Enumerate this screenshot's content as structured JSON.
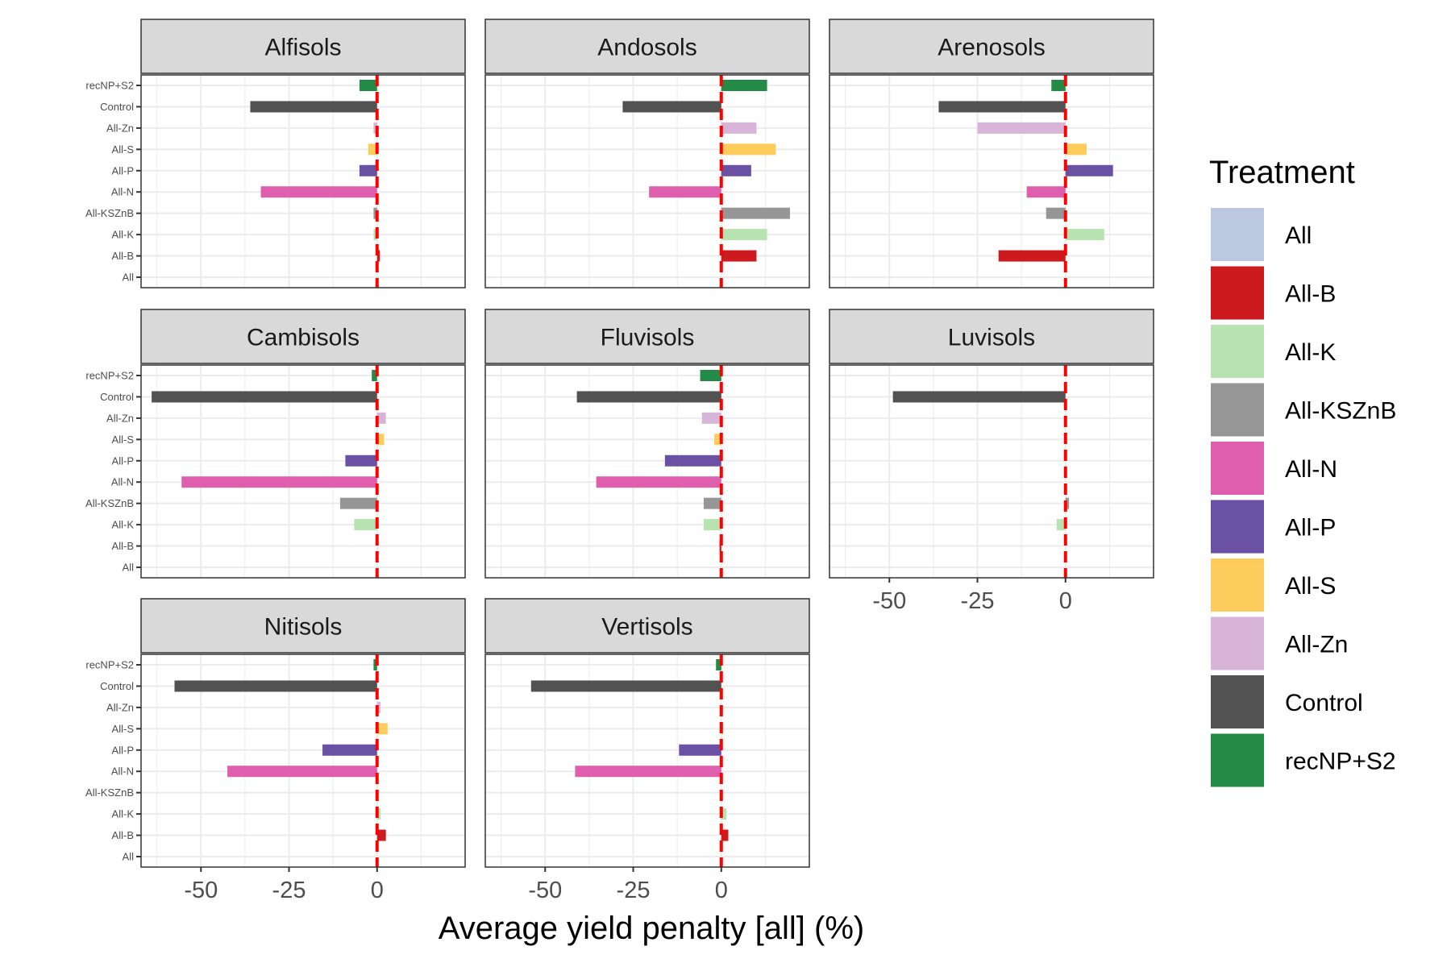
{
  "chart_data": {
    "type": "bar",
    "orientation": "horizontal",
    "xlabel": "Average yield penalty [all] (%)",
    "xlim": [
      -67,
      25
    ],
    "x_ticks": [
      -50,
      -25,
      0
    ],
    "x_tick_labels": [
      "-50",
      "-25",
      "0"
    ],
    "reference_line": {
      "x": 0,
      "style": "dashed",
      "color": "#ff0000"
    },
    "grid": true,
    "legend": {
      "title": "Treatment",
      "position": "right",
      "entries": [
        {
          "name": "All",
          "color": "#bcc8e0"
        },
        {
          "name": "All-B",
          "color": "#cc1a1f"
        },
        {
          "name": "All-K",
          "color": "#b7e3b1"
        },
        {
          "name": "All-KSZnB",
          "color": "#969696"
        },
        {
          "name": "All-N",
          "color": "#df5fae"
        },
        {
          "name": "All-P",
          "color": "#6a51a3"
        },
        {
          "name": "All-S",
          "color": "#fecc5c"
        },
        {
          "name": "All-Zn",
          "color": "#d8b5d8"
        },
        {
          "name": "Control",
          "color": "#525252"
        },
        {
          "name": "recNP+S2",
          "color": "#238b45"
        }
      ]
    },
    "categories": [
      "All",
      "All-B",
      "All-K",
      "All-KSZnB",
      "All-N",
      "All-P",
      "All-S",
      "All-Zn",
      "Control",
      "recNP+S2"
    ],
    "panels": [
      {
        "name": "Alfisols",
        "values": [
          0,
          0.8,
          -1,
          -1,
          -33,
          -5,
          -2.5,
          -1,
          -36,
          -5
        ]
      },
      {
        "name": "Andosols",
        "values": [
          null,
          10,
          13,
          19.5,
          -20.5,
          8.5,
          15.5,
          10,
          -28,
          13
        ]
      },
      {
        "name": "Arenosols",
        "values": [
          null,
          -19,
          11,
          -5.5,
          -11,
          13.5,
          6,
          -25,
          -36,
          -4
        ]
      },
      {
        "name": "Cambisols",
        "values": [
          0,
          0,
          -6.5,
          -10.5,
          -55.5,
          -9,
          2,
          2.5,
          -64,
          -1.5
        ]
      },
      {
        "name": "Fluvisols",
        "values": [
          0,
          -0.5,
          -5,
          -5,
          -35.5,
          -16,
          -2,
          -5.5,
          -41,
          -6
        ]
      },
      {
        "name": "Luvisols",
        "values": [
          null,
          null,
          -2.5,
          1,
          null,
          null,
          null,
          null,
          -49,
          null
        ]
      },
      {
        "name": "Nitisols",
        "values": [
          0,
          2.5,
          1,
          null,
          -42.5,
          -15.5,
          3,
          1,
          -57.5,
          -1
        ]
      },
      {
        "name": "Vertisols",
        "values": [
          0,
          2,
          1.5,
          null,
          -41.5,
          -12,
          0.5,
          null,
          -54,
          -1.5
        ]
      }
    ]
  }
}
